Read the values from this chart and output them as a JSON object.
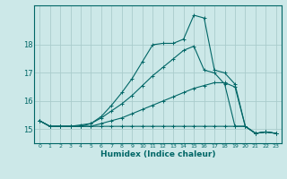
{
  "xlabel": "Humidex (Indice chaleur)",
  "bg_color": "#cce8e8",
  "grid_color": "#aacccc",
  "line_color": "#006666",
  "xlim": [
    -0.5,
    23.5
  ],
  "ylim": [
    14.5,
    19.4
  ],
  "yticks": [
    15,
    16,
    17,
    18
  ],
  "xticks": [
    0,
    1,
    2,
    3,
    4,
    5,
    6,
    7,
    8,
    9,
    10,
    11,
    12,
    13,
    14,
    15,
    16,
    17,
    18,
    19,
    20,
    21,
    22,
    23
  ],
  "series": [
    {
      "x": [
        0,
        1,
        2,
        3,
        4,
        5,
        6,
        7,
        8,
        9,
        10,
        11,
        12,
        13,
        14,
        15,
        16,
        17,
        18,
        19,
        20,
        21,
        22,
        23
      ],
      "y": [
        15.3,
        15.1,
        15.1,
        15.1,
        15.1,
        15.1,
        15.1,
        15.1,
        15.1,
        15.1,
        15.1,
        15.1,
        15.1,
        15.1,
        15.1,
        15.1,
        15.1,
        15.1,
        15.1,
        15.1,
        15.1,
        14.85,
        14.9,
        14.85
      ]
    },
    {
      "x": [
        0,
        1,
        2,
        3,
        4,
        5,
        6,
        7,
        8,
        9,
        10,
        11,
        12,
        13,
        14,
        15,
        16,
        17,
        18,
        19,
        20,
        21,
        22,
        23
      ],
      "y": [
        15.3,
        15.1,
        15.1,
        15.1,
        15.1,
        15.1,
        15.2,
        15.3,
        15.4,
        15.55,
        15.7,
        15.85,
        16.0,
        16.15,
        16.3,
        16.45,
        16.55,
        16.65,
        16.65,
        16.5,
        15.1,
        14.85,
        14.9,
        14.85
      ]
    },
    {
      "x": [
        0,
        1,
        2,
        3,
        4,
        5,
        6,
        7,
        8,
        9,
        10,
        11,
        12,
        13,
        14,
        15,
        16,
        17,
        18,
        19,
        20,
        21,
        22,
        23
      ],
      "y": [
        15.3,
        15.1,
        15.1,
        15.1,
        15.15,
        15.2,
        15.4,
        15.65,
        15.9,
        16.2,
        16.55,
        16.9,
        17.2,
        17.5,
        17.8,
        17.95,
        17.1,
        17.0,
        16.6,
        15.1,
        15.1,
        14.85,
        14.9,
        14.85
      ]
    },
    {
      "x": [
        0,
        1,
        2,
        3,
        4,
        5,
        6,
        7,
        8,
        9,
        10,
        11,
        12,
        13,
        14,
        15,
        16,
        17,
        18,
        19,
        20,
        21,
        22,
        23
      ],
      "y": [
        15.3,
        15.1,
        15.1,
        15.1,
        15.1,
        15.2,
        15.45,
        15.85,
        16.3,
        16.8,
        17.4,
        18.0,
        18.05,
        18.05,
        18.2,
        19.05,
        18.95,
        17.1,
        17.0,
        16.6,
        15.1,
        14.85,
        14.9,
        14.85
      ]
    }
  ]
}
